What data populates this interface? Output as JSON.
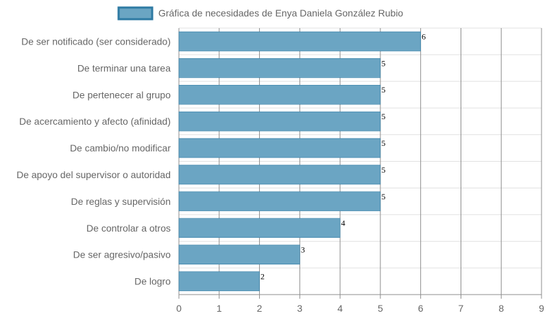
{
  "chart_data": {
    "type": "bar",
    "orientation": "horizontal",
    "categories": [
      "De ser notificado (ser considerado)",
      "De terminar una tarea",
      "De pertenecer al grupo",
      "De acercamiento y afecto (afinidad)",
      "De cambio/no modificar",
      "De apoyo del supervisor o autoridad",
      "De reglas y supervisión",
      "De controlar a otros",
      "De ser agresivo/pasivo",
      "De logro"
    ],
    "series": [
      {
        "name": "Gráfica de necesidades de Enya Daniela González Rubio",
        "values": [
          6,
          5,
          5,
          5,
          5,
          5,
          5,
          4,
          3,
          2
        ],
        "color": "#6BA5C3",
        "border_color": "#2E7AA3"
      }
    ],
    "xlim": [
      0,
      9
    ],
    "x_ticks": [
      "0",
      "1",
      "2",
      "3",
      "4",
      "5",
      "6",
      "7",
      "8",
      "9"
    ],
    "data_labels": [
      "6",
      "5",
      "5",
      "5",
      "5",
      "5",
      "5",
      "4",
      "3",
      "2"
    ],
    "legend_position": "top",
    "grid": true,
    "colors": {
      "grid_vertical": "#8C8C8C",
      "grid_horizontal": "#E1E1E1",
      "text": "#666666"
    }
  }
}
